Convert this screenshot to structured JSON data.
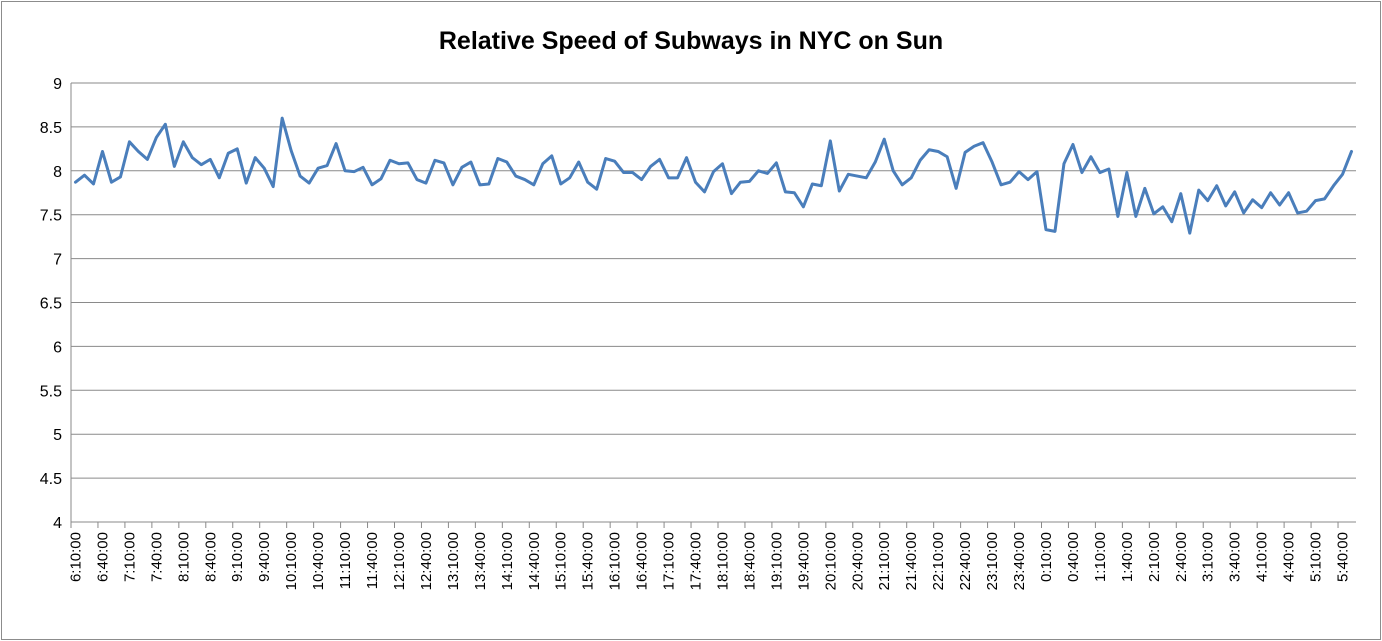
{
  "chart_data": {
    "type": "line",
    "title": "Relative Speed of Subways in NYC on Sun",
    "xlabel": "",
    "ylabel": "",
    "ylim": [
      4,
      9
    ],
    "y_ticks": [
      "4",
      "4.5",
      "5",
      "5.5",
      "6",
      "6.5",
      "7",
      "7.5",
      "8",
      "8.5",
      "9"
    ],
    "grid": true,
    "legend": "none",
    "series_color": "#4a7ebb",
    "x": [
      "6:10:00",
      "6:20:00",
      "6:30:00",
      "6:40:00",
      "6:50:00",
      "7:00:00",
      "7:10:00",
      "7:20:00",
      "7:30:00",
      "7:40:00",
      "7:50:00",
      "8:00:00",
      "8:10:00",
      "8:20:00",
      "8:30:00",
      "8:40:00",
      "8:50:00",
      "9:00:00",
      "9:10:00",
      "9:20:00",
      "9:30:00",
      "9:40:00",
      "9:50:00",
      "10:00:00",
      "10:10:00",
      "10:20:00",
      "10:30:00",
      "10:40:00",
      "10:50:00",
      "11:00:00",
      "11:10:00",
      "11:20:00",
      "11:30:00",
      "11:40:00",
      "11:50:00",
      "12:00:00",
      "12:10:00",
      "12:20:00",
      "12:30:00",
      "12:40:00",
      "12:50:00",
      "13:00:00",
      "13:10:00",
      "13:20:00",
      "13:30:00",
      "13:40:00",
      "13:50:00",
      "14:00:00",
      "14:10:00",
      "14:20:00",
      "14:30:00",
      "14:40:00",
      "14:50:00",
      "15:00:00",
      "15:10:00",
      "15:20:00",
      "15:30:00",
      "15:40:00",
      "15:50:00",
      "16:00:00",
      "16:10:00",
      "16:20:00",
      "16:30:00",
      "16:40:00",
      "16:50:00",
      "17:00:00",
      "17:10:00",
      "17:20:00",
      "17:30:00",
      "17:40:00",
      "17:50:00",
      "18:00:00",
      "18:10:00",
      "18:20:00",
      "18:30:00",
      "18:40:00",
      "18:50:00",
      "19:00:00",
      "19:10:00",
      "19:20:00",
      "19:30:00",
      "19:40:00",
      "19:50:00",
      "20:00:00",
      "20:10:00",
      "20:20:00",
      "20:30:00",
      "20:40:00",
      "20:50:00",
      "21:00:00",
      "21:10:00",
      "21:20:00",
      "21:30:00",
      "21:40:00",
      "21:50:00",
      "22:00:00",
      "22:10:00",
      "22:20:00",
      "22:30:00",
      "22:40:00",
      "22:50:00",
      "23:00:00",
      "23:10:00",
      "23:20:00",
      "23:30:00",
      "23:40:00",
      "23:50:00",
      "0:00:00",
      "0:10:00",
      "0:20:00",
      "0:30:00",
      "0:40:00",
      "0:50:00",
      "1:00:00",
      "1:10:00",
      "1:20:00",
      "1:30:00",
      "1:40:00",
      "1:50:00",
      "2:00:00",
      "2:10:00",
      "2:20:00",
      "2:30:00",
      "2:40:00",
      "2:50:00",
      "3:00:00",
      "3:10:00",
      "3:20:00",
      "3:30:00",
      "3:40:00",
      "3:50:00",
      "4:00:00",
      "4:10:00",
      "4:20:00",
      "4:30:00",
      "4:40:00",
      "4:50:00",
      "5:00:00",
      "5:10:00",
      "5:20:00",
      "5:30:00",
      "5:40:00",
      "5:50:00"
    ],
    "x_tick_labels": [
      "6:10:00",
      "6:40:00",
      "7:10:00",
      "7:40:00",
      "8:10:00",
      "8:40:00",
      "9:10:00",
      "9:40:00",
      "10:10:00",
      "10:40:00",
      "11:10:00",
      "11:40:00",
      "12:10:00",
      "12:40:00",
      "13:10:00",
      "13:40:00",
      "14:10:00",
      "14:40:00",
      "15:10:00",
      "15:40:00",
      "16:10:00",
      "16:40:00",
      "17:10:00",
      "17:40:00",
      "18:10:00",
      "18:40:00",
      "19:10:00",
      "19:40:00",
      "20:10:00",
      "20:40:00",
      "21:10:00",
      "21:40:00",
      "22:10:00",
      "22:40:00",
      "23:10:00",
      "23:40:00",
      "0:10:00",
      "0:40:00",
      "1:10:00",
      "1:40:00",
      "2:10:00",
      "2:40:00",
      "3:10:00",
      "3:40:00",
      "4:10:00",
      "4:40:00",
      "5:10:00",
      "5:40:00"
    ],
    "series": [
      {
        "values": [
          7.87,
          7.95,
          7.85,
          8.22,
          7.87,
          7.93,
          8.33,
          8.22,
          8.13,
          8.38,
          8.53,
          8.05,
          8.33,
          8.15,
          8.07,
          8.13,
          7.92,
          8.2,
          8.25,
          7.86,
          8.15,
          8.03,
          7.82,
          8.6,
          8.23,
          7.94,
          7.86,
          8.03,
          8.06,
          8.31,
          8.0,
          7.99,
          8.04,
          7.84,
          7.91,
          8.12,
          8.08,
          8.09,
          7.9,
          7.86,
          8.12,
          8.09,
          7.84,
          8.04,
          8.1,
          7.84,
          7.85,
          8.14,
          8.1,
          7.94,
          7.9,
          7.84,
          8.08,
          8.17,
          7.85,
          7.92,
          8.1,
          7.87,
          7.79,
          8.14,
          8.11,
          7.98,
          7.98,
          7.9,
          8.05,
          8.13,
          7.92,
          7.92,
          8.15,
          7.87,
          7.76,
          7.99,
          8.08,
          7.74,
          7.87,
          7.88,
          8.0,
          7.97,
          8.09,
          7.76,
          7.75,
          7.59,
          7.85,
          7.83,
          8.34,
          7.77,
          7.96,
          7.94,
          7.92,
          8.1,
          8.36,
          8.0,
          7.84,
          7.92,
          8.12,
          8.24,
          8.22,
          8.16,
          7.8,
          8.21,
          8.28,
          8.32,
          8.1,
          7.84,
          7.87,
          7.99,
          7.9,
          7.99,
          7.33,
          7.31,
          8.08,
          8.3,
          7.98,
          8.16,
          7.98,
          8.02,
          7.48,
          7.98,
          7.48,
          7.8,
          7.51,
          7.59,
          7.42,
          7.74,
          7.29,
          7.78,
          7.66,
          7.83,
          7.6,
          7.76,
          7.52,
          7.67,
          7.58,
          7.75,
          7.61,
          7.75,
          7.52,
          7.54,
          7.66,
          7.68,
          7.83,
          7.96,
          8.22
        ]
      }
    ]
  }
}
